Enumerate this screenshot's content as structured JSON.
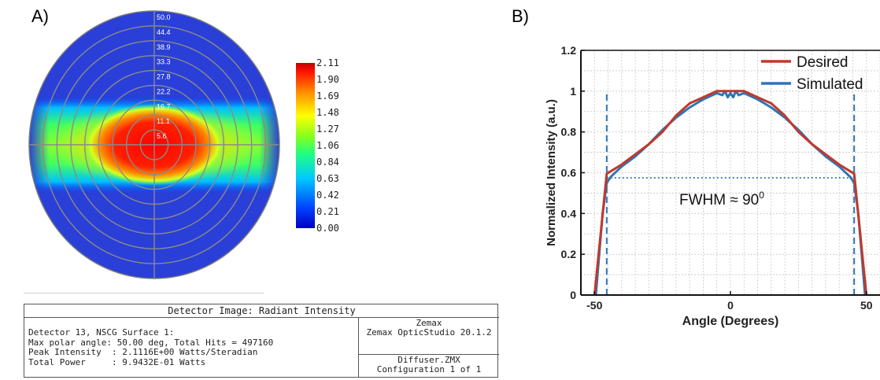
{
  "panel_a": {
    "label": "A)",
    "ring_labels": [
      "50.0",
      "44.4",
      "38.9",
      "33.3",
      "27.8",
      "22.2",
      "16.7",
      "11.1",
      "5.6"
    ],
    "colorbar_ticks": [
      "2.11",
      "1.90",
      "1.69",
      "1.48",
      "1.27",
      "1.06",
      "0.84",
      "0.63",
      "0.42",
      "0.21",
      "0.00"
    ],
    "info": {
      "title": "Detector Image: Radiant Intensity",
      "line1": "Detector 13, NSCG Surface 1:",
      "line2": "Max polar angle: 50.00 deg, Total Hits = 497160",
      "line3": "Peak Intensity  : 2.1116E+00 Watts/Steradian",
      "line4": "Total Power     : 9.9432E-01 Watts",
      "software_1": "Zemax",
      "software_2": "Zemax OpticStudio 20.1.2",
      "file_1": "Diffuser.ZMX",
      "file_2": "Configuration 1 of 1"
    }
  },
  "panel_b": {
    "label": "B)"
  },
  "chart_data": [
    {
      "type": "heatmap",
      "title": "Detector Image: Radiant Intensity",
      "projection": "polar",
      "radial_labels": [
        50.0,
        44.4,
        38.9,
        33.3,
        27.8,
        22.2,
        16.7,
        11.1,
        5.6
      ],
      "max_polar_angle_deg": 50.0,
      "peak_intensity": 2.11,
      "colorbar": {
        "min": 0.0,
        "max": 2.11,
        "ticks": [
          2.11,
          1.9,
          1.69,
          1.48,
          1.27,
          1.06,
          0.84,
          0.63,
          0.42,
          0.21,
          0.0
        ],
        "colormap": "jet"
      },
      "approx_horizontal_full_width_deg": 90,
      "approx_vertical_full_width_deg": 30
    },
    {
      "type": "line",
      "xlabel": "Angle (Degrees)",
      "ylabel": "Normalized Intensity (a.u.)",
      "xlim": [
        -55,
        55
      ],
      "ylim": [
        0,
        1.2
      ],
      "xticks": [
        -50,
        0,
        50
      ],
      "yticks": [
        0,
        0.2,
        0.4,
        0.6,
        0.8,
        1,
        1.2
      ],
      "grid": true,
      "legend_position": "top-right",
      "annotation": {
        "text": "FWHM ≈ 90",
        "superscript": "0",
        "level": 0.575
      },
      "vlines": [
        -45.5,
        45.5
      ],
      "series": [
        {
          "name": "Desired",
          "color": "#c0392b",
          "x": [
            -50,
            -45.5,
            -40,
            -35,
            -30,
            -25,
            -20,
            -15,
            -10,
            -5,
            0,
            5,
            10,
            15,
            20,
            25,
            30,
            35,
            40,
            45.5,
            50
          ],
          "y": [
            0.0,
            0.595,
            0.64,
            0.69,
            0.74,
            0.8,
            0.88,
            0.94,
            0.97,
            1.0,
            1.0,
            1.0,
            0.97,
            0.94,
            0.88,
            0.8,
            0.74,
            0.69,
            0.64,
            0.595,
            0.0
          ]
        },
        {
          "name": "Simulated",
          "color": "#2e75b6",
          "x": [
            -49.5,
            -47,
            -45.5,
            -44,
            -40,
            -35,
            -30,
            -25,
            -20,
            -15,
            -10,
            -5,
            -3,
            -2,
            -1,
            0,
            1,
            2,
            3,
            5,
            10,
            15,
            20,
            25,
            30,
            35,
            40,
            44,
            45.5,
            47,
            49.5
          ],
          "y": [
            0.0,
            0.4,
            0.55,
            0.58,
            0.63,
            0.68,
            0.74,
            0.81,
            0.87,
            0.92,
            0.96,
            0.99,
            0.98,
            1.0,
            0.97,
            0.99,
            0.97,
            1.0,
            0.98,
            0.99,
            0.96,
            0.92,
            0.87,
            0.81,
            0.74,
            0.68,
            0.63,
            0.58,
            0.55,
            0.4,
            0.0
          ]
        }
      ]
    }
  ]
}
